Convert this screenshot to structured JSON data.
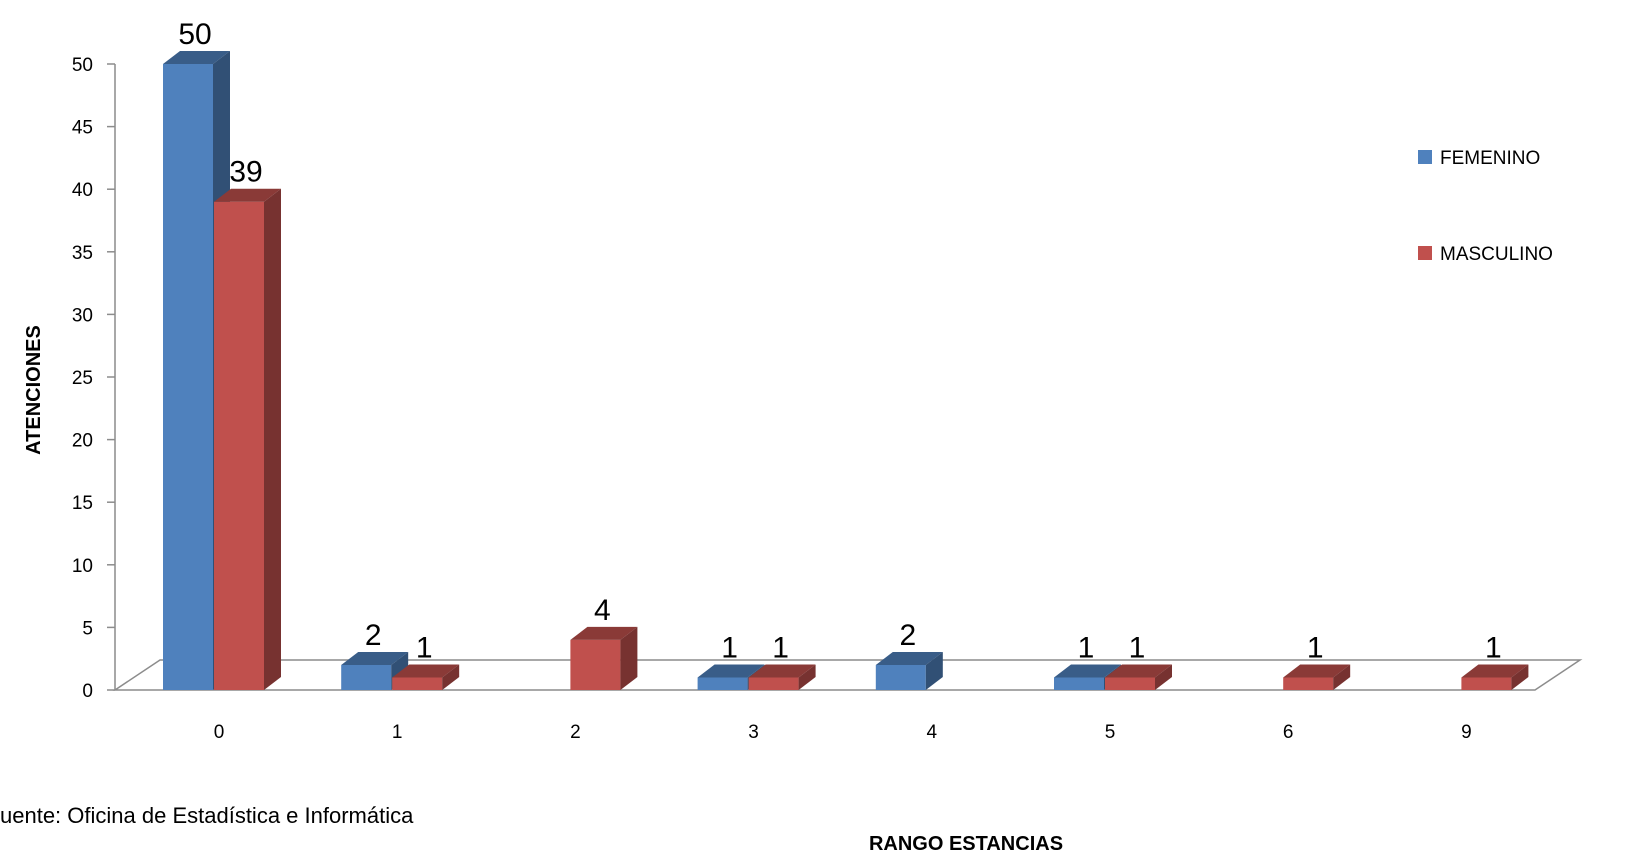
{
  "chart_data": {
    "type": "bar",
    "style": "3d-clustered-column",
    "categories": [
      "0",
      "1",
      "2",
      "3",
      "4",
      "5",
      "6",
      "9"
    ],
    "series": [
      {
        "name": "FEMENINO",
        "color": "#4F81BD",
        "values": [
          50,
          2,
          0,
          1,
          2,
          1,
          0,
          0
        ]
      },
      {
        "name": "MASCULINO",
        "color": "#C0504D",
        "values": [
          39,
          1,
          4,
          1,
          0,
          1,
          1,
          1
        ]
      }
    ],
    "xlabel": "RANGO ESTANCIAS",
    "ylabel": "ATENCIONES",
    "ylim": [
      0,
      50
    ],
    "yticks": [
      0,
      5,
      10,
      15,
      20,
      25,
      30,
      35,
      40,
      45,
      50
    ],
    "grid": false,
    "legend": "right",
    "data_labels": true
  },
  "source_note": "uente: Oficina de Estadística e Informática"
}
